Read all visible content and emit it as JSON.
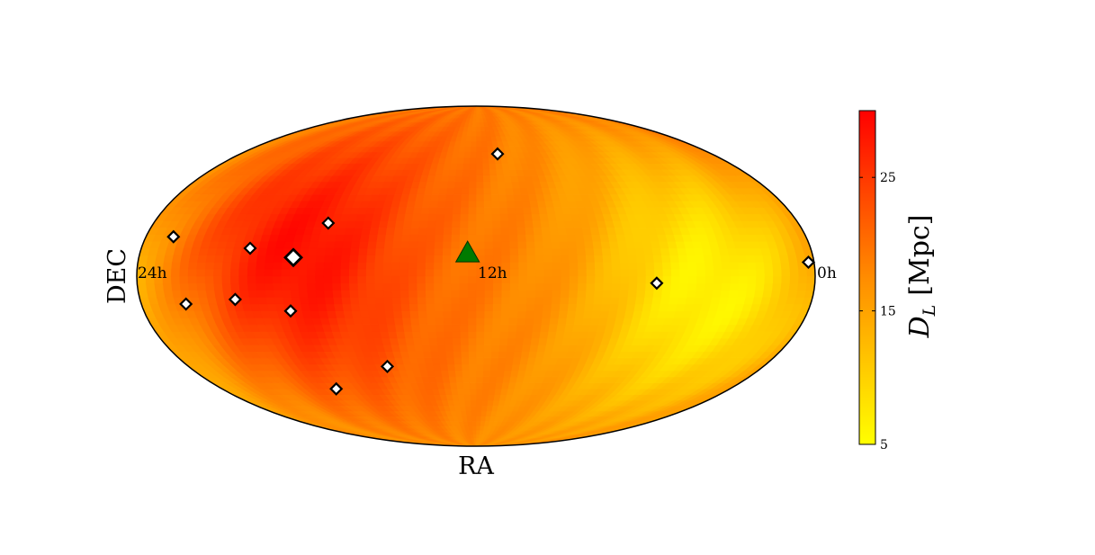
{
  "chart_data": {
    "type": "heatmap",
    "projection": "mollweide",
    "xlabel": "RA",
    "ylabel": "DEC",
    "ra_tick_labels": [
      "24h",
      "12h",
      "0h"
    ],
    "colorbar": {
      "label_main": "D",
      "label_sub": "L",
      "label_unit": "[Mpc]",
      "ticks": [
        5,
        15,
        25
      ],
      "range": [
        5,
        30
      ],
      "colors": [
        "#ffff00",
        "#ff8c00",
        "#ff0000"
      ]
    },
    "field_model": {
      "note_hidden": false,
      "hot_center": {
        "ra_h": 18.5,
        "dec": 10,
        "value": 29
      },
      "cold_center": {
        "ra_h": 3.6,
        "dec": -6,
        "value": 6
      }
    },
    "galaxies": [
      {
        "ra_h": 23.0,
        "dec": 17,
        "size": "small"
      },
      {
        "ra_h": 20.1,
        "dec": 12,
        "size": "small"
      },
      {
        "ra_h": 17.5,
        "dec": 23,
        "size": "small"
      },
      {
        "ra_h": 18.5,
        "dec": 8,
        "size": "large"
      },
      {
        "ra_h": 20.6,
        "dec": -10,
        "size": "small"
      },
      {
        "ra_h": 22.4,
        "dec": -12,
        "size": "small"
      },
      {
        "ra_h": 18.7,
        "dec": -15,
        "size": "small"
      },
      {
        "ra_h": 15.7,
        "dec": -40,
        "size": "small"
      },
      {
        "ra_h": 18.6,
        "dec": -51,
        "size": "small"
      },
      {
        "ra_h": 10.9,
        "dec": 56,
        "size": "small"
      },
      {
        "ra_h": 5.6,
        "dec": -3,
        "size": "small"
      },
      {
        "ra_h": 0.2,
        "dec": 6,
        "size": "small"
      }
    ],
    "source_marker": {
      "ra_h": 12.3,
      "dec": 10,
      "color": "#007a00"
    },
    "grid": false
  }
}
